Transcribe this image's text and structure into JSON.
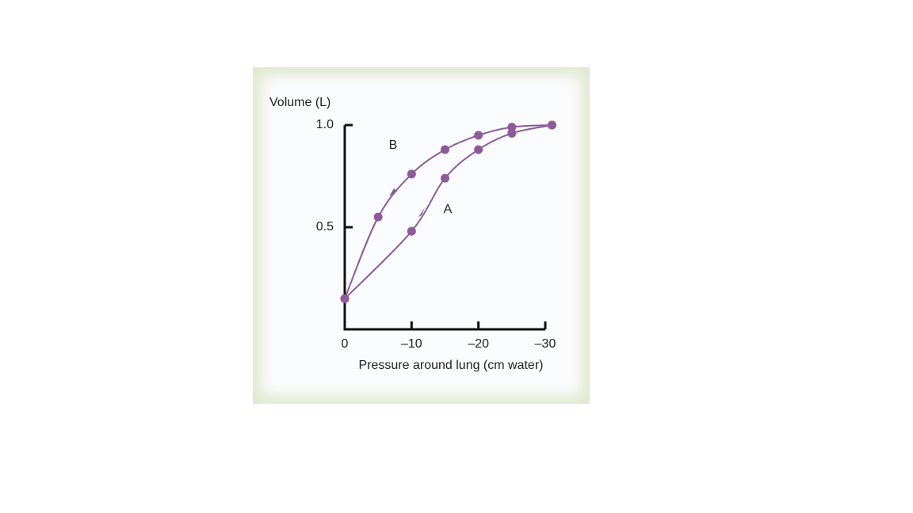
{
  "chart_data": {
    "type": "line",
    "y_label": "Volume (L)",
    "x_label": "Pressure around lung (cm water)",
    "xlim": [
      0,
      -30
    ],
    "ylim": [
      0,
      1
    ],
    "xticks": [
      0,
      {
        "value": -10,
        "label": "–10"
      },
      {
        "value": -20,
        "label": "–20"
      },
      {
        "value": -30,
        "label": "–30"
      }
    ],
    "yticks": [
      0.5,
      {
        "value": 1,
        "label": "1.0"
      }
    ],
    "series": [
      {
        "name": "A",
        "color": "#8e5a9a",
        "x": [
          0,
          -10,
          -15,
          -20,
          -25,
          -31
        ],
        "values": [
          0.15,
          0.48,
          0.74,
          0.88,
          0.96,
          1.0
        ]
      },
      {
        "name": "B",
        "color": "#8e5a9a",
        "x": [
          -31,
          -25,
          -20,
          -15,
          -10,
          -5,
          0
        ],
        "values": [
          1.0,
          0.99,
          0.95,
          0.88,
          0.76,
          0.55,
          0.15
        ]
      }
    ]
  }
}
